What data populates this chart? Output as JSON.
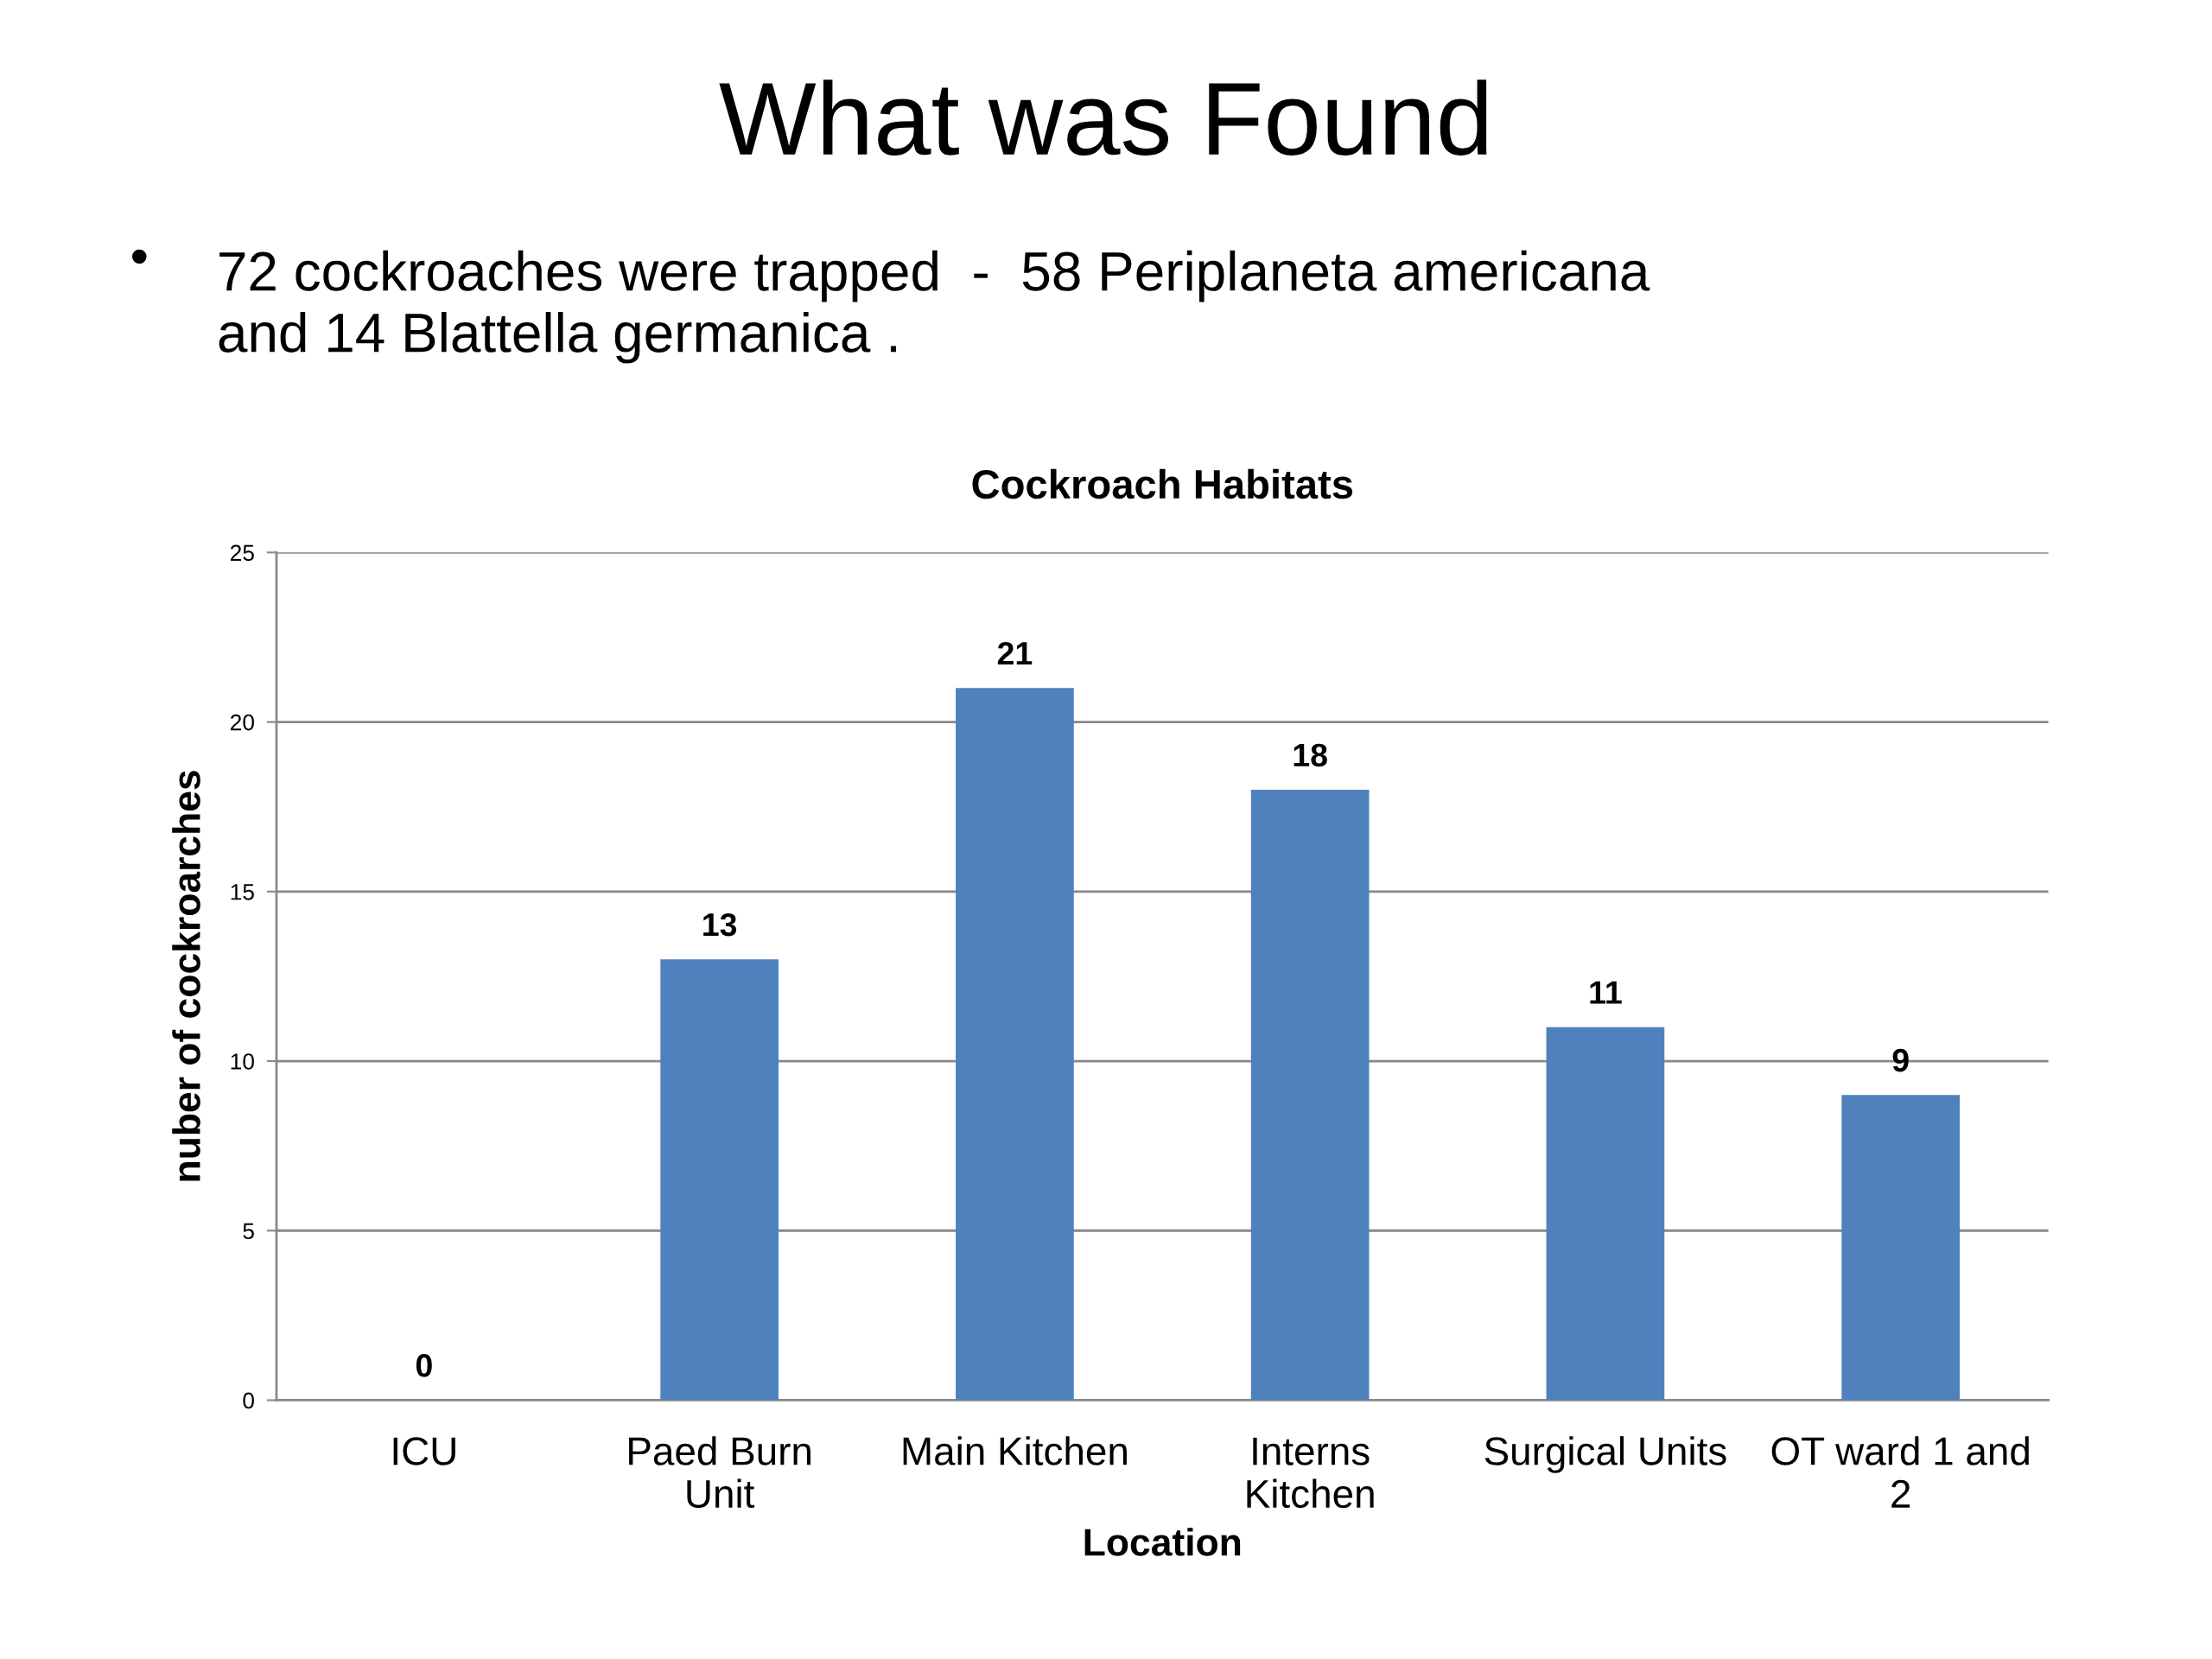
{
  "chart_data": {
    "type": "bar",
    "title": "Cockroach Habitats",
    "xlabel": "Location",
    "ylabel": "nuber of cockroarches",
    "annotations": [
      "What was Found",
      "•",
      "72 cockroaches were trapped  -  58 Periplaneta americana\nand 14 Blattella germanica ."
    ],
    "categories": [
      "ICU",
      "Paed Burn\nUnit",
      "Main Kitchen",
      "Interns\nKitchen",
      "Surgical Units",
      "OT ward 1 and\n2"
    ],
    "values": [
      0,
      13,
      21,
      18,
      11,
      9
    ],
    "color": "#4f81bd",
    "ylim": [
      0,
      25
    ],
    "yticks": [
      0,
      5,
      10,
      15,
      20,
      25
    ],
    "grid": "y",
    "data_labels": true
  }
}
